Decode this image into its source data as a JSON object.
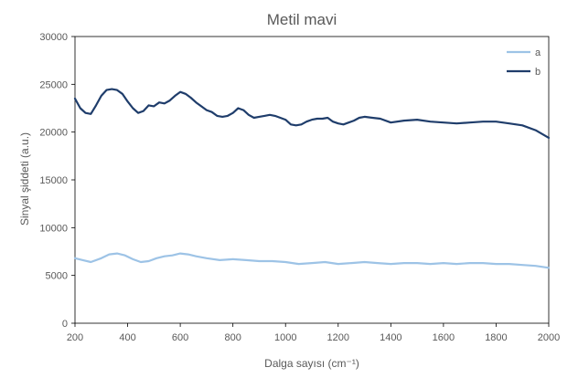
{
  "chart_data": {
    "type": "line",
    "title": "Metil mavi",
    "xlabel": "Dalga sayısı (cm⁻¹)",
    "ylabel": "Sinyal şiddeti (a.u.)",
    "xlim": [
      200,
      2000
    ],
    "ylim": [
      0,
      30000
    ],
    "xticks": [
      200,
      400,
      600,
      800,
      1000,
      1200,
      1400,
      1600,
      1800,
      2000
    ],
    "yticks": [
      0,
      5000,
      10000,
      15000,
      20000,
      25000,
      30000
    ],
    "grid": false,
    "legend_position": "top-right",
    "series": [
      {
        "name": "a",
        "color": "#9dc3e6",
        "x": [
          200,
          230,
          260,
          300,
          330,
          360,
          390,
          420,
          450,
          480,
          510,
          540,
          570,
          600,
          630,
          660,
          700,
          750,
          800,
          850,
          900,
          950,
          1000,
          1050,
          1100,
          1150,
          1200,
          1250,
          1300,
          1350,
          1400,
          1450,
          1500,
          1550,
          1600,
          1650,
          1700,
          1750,
          1800,
          1850,
          1900,
          1950,
          2000
        ],
        "y": [
          6800,
          6600,
          6400,
          6800,
          7200,
          7300,
          7100,
          6700,
          6400,
          6500,
          6800,
          7000,
          7100,
          7300,
          7200,
          7000,
          6800,
          6600,
          6700,
          6600,
          6500,
          6500,
          6400,
          6200,
          6300,
          6400,
          6200,
          6300,
          6400,
          6300,
          6200,
          6300,
          6300,
          6200,
          6300,
          6200,
          6300,
          6300,
          6200,
          6200,
          6100,
          6000,
          5800
        ]
      },
      {
        "name": "b",
        "color": "#1f3d6b",
        "x": [
          200,
          220,
          240,
          260,
          280,
          300,
          320,
          340,
          360,
          380,
          400,
          420,
          440,
          460,
          480,
          500,
          520,
          540,
          560,
          580,
          600,
          620,
          640,
          660,
          680,
          700,
          720,
          740,
          760,
          780,
          800,
          820,
          840,
          860,
          880,
          900,
          920,
          940,
          960,
          980,
          1000,
          1020,
          1040,
          1060,
          1080,
          1100,
          1120,
          1140,
          1160,
          1180,
          1200,
          1220,
          1240,
          1260,
          1280,
          1300,
          1330,
          1360,
          1400,
          1450,
          1500,
          1550,
          1600,
          1650,
          1700,
          1750,
          1800,
          1850,
          1900,
          1950,
          2000
        ],
        "y": [
          23500,
          22500,
          22000,
          21900,
          22800,
          23800,
          24400,
          24500,
          24400,
          24000,
          23200,
          22500,
          22000,
          22200,
          22800,
          22700,
          23100,
          23000,
          23300,
          23800,
          24200,
          24000,
          23600,
          23100,
          22700,
          22300,
          22100,
          21700,
          21600,
          21700,
          22000,
          22500,
          22300,
          21800,
          21500,
          21600,
          21700,
          21800,
          21700,
          21500,
          21300,
          20800,
          20700,
          20800,
          21100,
          21300,
          21400,
          21400,
          21500,
          21100,
          20900,
          20800,
          21000,
          21200,
          21500,
          21600,
          21500,
          21400,
          21000,
          21200,
          21300,
          21100,
          21000,
          20900,
          21000,
          21100,
          21100,
          20900,
          20700,
          20200,
          19400
        ]
      }
    ]
  }
}
